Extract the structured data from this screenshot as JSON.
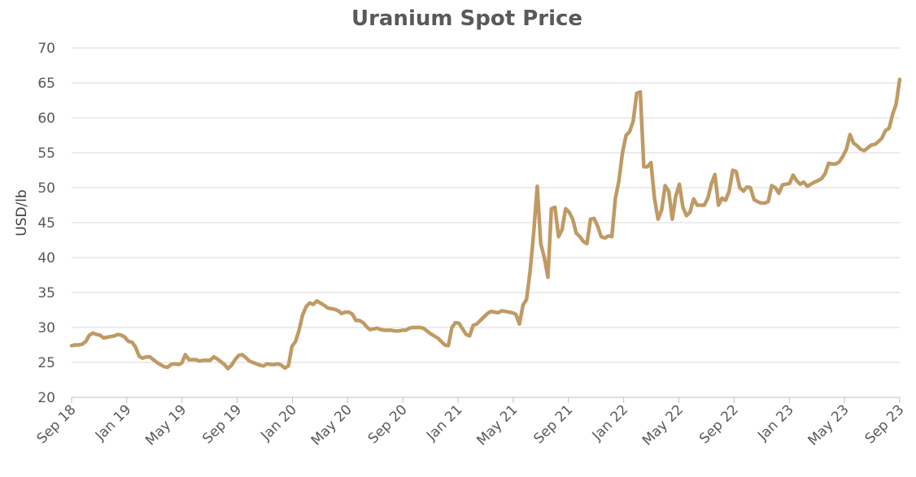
{
  "chart_data": {
    "type": "line",
    "title": "Uranium Spot Price",
    "xlabel": "",
    "ylabel": "USD/lb",
    "ylim": [
      20,
      70
    ],
    "y_ticks": [
      20,
      25,
      30,
      35,
      40,
      45,
      50,
      55,
      60,
      65,
      70
    ],
    "x_ticks": [
      "Sep 18",
      "Jan 19",
      "May 19",
      "Sep 19",
      "Jan 20",
      "May 20",
      "Sep 20",
      "Jan 21",
      "May 21",
      "Sep 21",
      "Jan 22",
      "May 22",
      "Sep 22",
      "Jan 23",
      "May 23",
      "Sep 23"
    ],
    "grid": "horizontal",
    "legend": "none",
    "line_color": "#C09A64",
    "series": [
      {
        "values": [
          27.4,
          27.5,
          27.5,
          27.6,
          28.0,
          28.9,
          29.2,
          29.0,
          28.9,
          28.5,
          28.6,
          28.7,
          28.8,
          29.0,
          28.9,
          28.6,
          28.0,
          27.9,
          27.2,
          25.9,
          25.6,
          25.8,
          25.8,
          25.4,
          25.0,
          24.7,
          24.4,
          24.3,
          24.7,
          24.8,
          24.7,
          24.9,
          26.1,
          25.4,
          25.4,
          25.4,
          25.2,
          25.3,
          25.3,
          25.3,
          25.8,
          25.5,
          25.1,
          24.7,
          24.1,
          24.6,
          25.4,
          26.0,
          26.1,
          25.7,
          25.2,
          25.0,
          24.8,
          24.6,
          24.5,
          24.8,
          24.7,
          24.7,
          24.8,
          24.6,
          24.2,
          24.5,
          27.3,
          28.0,
          29.6,
          31.8,
          33.0,
          33.5,
          33.3,
          33.8,
          33.5,
          33.2,
          32.8,
          32.7,
          32.6,
          32.4,
          32.0,
          32.2,
          32.2,
          31.9,
          31.0,
          31.0,
          30.7,
          30.1,
          29.7,
          29.8,
          29.9,
          29.7,
          29.6,
          29.6,
          29.6,
          29.5,
          29.5,
          29.6,
          29.6,
          29.9,
          30.0,
          30.0,
          30.0,
          29.9,
          29.5,
          29.1,
          28.8,
          28.5,
          28.0,
          27.5,
          27.4,
          30.0,
          30.7,
          30.6,
          29.8,
          29.0,
          28.8,
          30.3,
          30.5,
          31.0,
          31.5,
          32.0,
          32.3,
          32.2,
          32.1,
          32.4,
          32.3,
          32.2,
          32.1,
          31.9,
          30.5,
          33.2,
          34.0,
          38.0,
          43.5,
          50.2,
          42.0,
          40.0,
          37.2,
          47.0,
          47.2,
          43.0,
          44.0,
          47.0,
          46.5,
          45.5,
          43.5,
          43.0,
          42.3,
          42.0,
          45.5,
          45.6,
          44.5,
          43.0,
          42.8,
          43.1,
          43.0,
          48.5,
          51.0,
          55.0,
          57.5,
          58.0,
          59.5,
          63.5,
          63.7,
          53.0,
          53.0,
          53.6,
          48.5,
          45.5,
          46.8,
          50.3,
          49.5,
          45.5,
          48.8,
          50.5,
          47.2,
          46.0,
          46.5,
          48.4,
          47.5,
          47.5,
          47.5,
          48.5,
          50.5,
          51.9,
          47.5,
          48.5,
          48.2,
          49.5,
          52.5,
          52.3,
          50.0,
          49.5,
          50.1,
          50.0,
          48.3,
          48.0,
          47.8,
          47.8,
          48.0,
          50.3,
          50.0,
          49.2,
          50.4,
          50.5,
          50.6,
          51.8,
          51.0,
          50.5,
          50.8,
          50.2,
          50.5,
          50.8,
          51.0,
          51.3,
          52.0,
          53.5,
          53.4,
          53.4,
          53.7,
          54.5,
          55.5,
          57.6,
          56.4,
          56.0,
          55.5,
          55.3,
          55.7,
          56.1,
          56.2,
          56.6,
          57.1,
          58.2,
          58.5,
          60.5,
          62.0,
          65.5
        ]
      }
    ]
  }
}
